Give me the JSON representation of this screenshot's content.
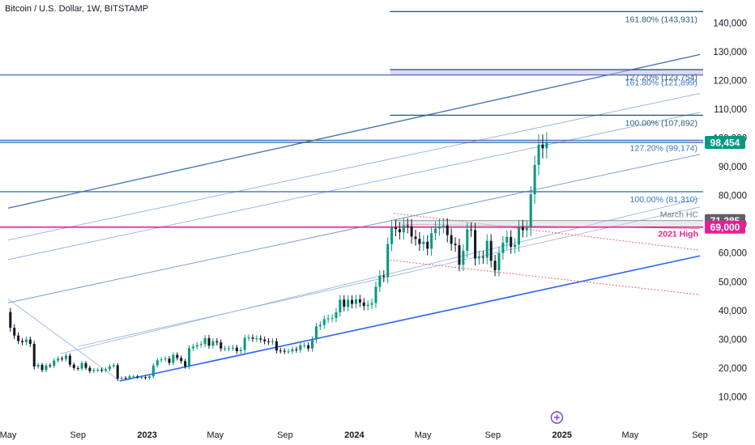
{
  "header": {
    "title": "Bitcoin / U.S. Dollar, 1W, BITSTAMP"
  },
  "colors": {
    "up": "#26a69a",
    "up_fill": "#089981",
    "down": "#131722",
    "trend_dark": "#2962ff",
    "trend": "#3d6fb8",
    "trend_light": "#8fb0de",
    "fib_dark": "#2b5c7c",
    "fib_blue": "#3b74c0",
    "magenta": "#e91e96",
    "gray": "#9598a1",
    "price_tag": "#089981",
    "red_dotted": "#e05a5a",
    "purple": "#6b4aa0"
  },
  "chart_data": {
    "type": "candlestick",
    "symbol": "Bitcoin / U.S. Dollar",
    "interval": "1W",
    "exchange": "BITSTAMP",
    "y_ticks": [
      10000,
      20000,
      30000,
      40000,
      50000,
      60000,
      70000,
      80000,
      90000,
      100000,
      110000,
      120000,
      130000,
      140000
    ],
    "y_tick_labels": [
      "10,000",
      "20,000",
      "30,000",
      "40,000",
      "50,000",
      "60,000",
      "70,000",
      "80,000",
      "90,000",
      "100,000",
      "110,000",
      "120,000",
      "130,000",
      "140,000"
    ],
    "x_labels": [
      {
        "label": "May",
        "date": "2022-05-01",
        "bold": false
      },
      {
        "label": "Sep",
        "date": "2022-09-01",
        "bold": false
      },
      {
        "label": "2023",
        "date": "2023-01-01",
        "bold": true
      },
      {
        "label": "May",
        "date": "2023-05-01",
        "bold": false
      },
      {
        "label": "Sep",
        "date": "2023-09-01",
        "bold": false
      },
      {
        "label": "2024",
        "date": "2024-01-01",
        "bold": true
      },
      {
        "label": "May",
        "date": "2024-05-01",
        "bold": false
      },
      {
        "label": "Sep",
        "date": "2024-09-01",
        "bold": false
      },
      {
        "label": "2025",
        "date": "2025-01-01",
        "bold": true
      },
      {
        "label": "May",
        "date": "2025-05-01",
        "bold": false
      },
      {
        "label": "Sep",
        "date": "2025-09-01",
        "bold": false
      }
    ],
    "x_range": [
      "2022-05-01",
      "2025-09-01"
    ],
    "y_range": [
      0,
      148000
    ],
    "candles_weekly_close": [
      {
        "date": "2022-04-25",
        "close": 39500
      },
      {
        "date": "2022-05-02",
        "close": 34000
      },
      {
        "date": "2022-05-09",
        "close": 31300
      },
      {
        "date": "2022-05-16",
        "close": 29400
      },
      {
        "date": "2022-05-23",
        "close": 29000
      },
      {
        "date": "2022-05-30",
        "close": 29900
      },
      {
        "date": "2022-06-06",
        "close": 28400
      },
      {
        "date": "2022-06-13",
        "close": 20500
      },
      {
        "date": "2022-06-20",
        "close": 21100
      },
      {
        "date": "2022-06-27",
        "close": 19300
      },
      {
        "date": "2022-07-04",
        "close": 20900
      },
      {
        "date": "2022-07-11",
        "close": 20800
      },
      {
        "date": "2022-07-18",
        "close": 22600
      },
      {
        "date": "2022-07-25",
        "close": 23300
      },
      {
        "date": "2022-08-01",
        "close": 23200
      },
      {
        "date": "2022-08-08",
        "close": 24300
      },
      {
        "date": "2022-08-15",
        "close": 21200
      },
      {
        "date": "2022-08-22",
        "close": 20000
      },
      {
        "date": "2022-08-29",
        "close": 19800
      },
      {
        "date": "2022-09-05",
        "close": 21700
      },
      {
        "date": "2022-09-12",
        "close": 20100
      },
      {
        "date": "2022-09-19",
        "close": 18900
      },
      {
        "date": "2022-09-26",
        "close": 19300
      },
      {
        "date": "2022-10-03",
        "close": 19400
      },
      {
        "date": "2022-10-10",
        "close": 19200
      },
      {
        "date": "2022-10-17",
        "close": 19600
      },
      {
        "date": "2022-10-24",
        "close": 20600
      },
      {
        "date": "2022-10-31",
        "close": 21000
      },
      {
        "date": "2022-11-07",
        "close": 16300
      },
      {
        "date": "2022-11-14",
        "close": 16600
      },
      {
        "date": "2022-11-21",
        "close": 16500
      },
      {
        "date": "2022-11-28",
        "close": 17100
      },
      {
        "date": "2022-12-05",
        "close": 17100
      },
      {
        "date": "2022-12-12",
        "close": 16800
      },
      {
        "date": "2022-12-19",
        "close": 16800
      },
      {
        "date": "2022-12-26",
        "close": 16600
      },
      {
        "date": "2023-01-02",
        "close": 17100
      },
      {
        "date": "2023-01-09",
        "close": 20900
      },
      {
        "date": "2023-01-16",
        "close": 22700
      },
      {
        "date": "2023-01-23",
        "close": 23000
      },
      {
        "date": "2023-01-30",
        "close": 23300
      },
      {
        "date": "2023-02-06",
        "close": 21800
      },
      {
        "date": "2023-02-13",
        "close": 24600
      },
      {
        "date": "2023-02-20",
        "close": 23500
      },
      {
        "date": "2023-02-27",
        "close": 22400
      },
      {
        "date": "2023-03-06",
        "close": 20600
      },
      {
        "date": "2023-03-13",
        "close": 26900
      },
      {
        "date": "2023-03-20",
        "close": 27500
      },
      {
        "date": "2023-03-27",
        "close": 28000
      },
      {
        "date": "2023-04-03",
        "close": 28300
      },
      {
        "date": "2023-04-10",
        "close": 30400
      },
      {
        "date": "2023-04-17",
        "close": 27800
      },
      {
        "date": "2023-04-24",
        "close": 29300
      },
      {
        "date": "2023-05-01",
        "close": 28900
      },
      {
        "date": "2023-05-08",
        "close": 26800
      },
      {
        "date": "2023-05-15",
        "close": 26800
      },
      {
        "date": "2023-05-22",
        "close": 26900
      },
      {
        "date": "2023-05-29",
        "close": 27100
      },
      {
        "date": "2023-06-05",
        "close": 25900
      },
      {
        "date": "2023-06-12",
        "close": 26300
      },
      {
        "date": "2023-06-19",
        "close": 30500
      },
      {
        "date": "2023-06-26",
        "close": 30600
      },
      {
        "date": "2023-07-03",
        "close": 30200
      },
      {
        "date": "2023-07-10",
        "close": 30300
      },
      {
        "date": "2023-07-17",
        "close": 29900
      },
      {
        "date": "2023-07-24",
        "close": 29300
      },
      {
        "date": "2023-07-31",
        "close": 29100
      },
      {
        "date": "2023-08-07",
        "close": 29300
      },
      {
        "date": "2023-08-14",
        "close": 26100
      },
      {
        "date": "2023-08-21",
        "close": 26000
      },
      {
        "date": "2023-08-28",
        "close": 25800
      },
      {
        "date": "2023-09-04",
        "close": 25800
      },
      {
        "date": "2023-09-11",
        "close": 26500
      },
      {
        "date": "2023-09-18",
        "close": 26300
      },
      {
        "date": "2023-09-25",
        "close": 27900
      },
      {
        "date": "2023-10-02",
        "close": 27900
      },
      {
        "date": "2023-10-09",
        "close": 26800
      },
      {
        "date": "2023-10-16",
        "close": 29900
      },
      {
        "date": "2023-10-23",
        "close": 34500
      },
      {
        "date": "2023-10-30",
        "close": 35000
      },
      {
        "date": "2023-11-06",
        "close": 37000
      },
      {
        "date": "2023-11-13",
        "close": 37300
      },
      {
        "date": "2023-11-20",
        "close": 37400
      },
      {
        "date": "2023-11-27",
        "close": 39400
      },
      {
        "date": "2023-12-04",
        "close": 43800
      },
      {
        "date": "2023-12-11",
        "close": 41300
      },
      {
        "date": "2023-12-18",
        "close": 43700
      },
      {
        "date": "2023-12-25",
        "close": 42300
      },
      {
        "date": "2024-01-01",
        "close": 43900
      },
      {
        "date": "2024-01-08",
        "close": 42800
      },
      {
        "date": "2024-01-15",
        "close": 41600
      },
      {
        "date": "2024-01-22",
        "close": 42000
      },
      {
        "date": "2024-01-29",
        "close": 42600
      },
      {
        "date": "2024-02-05",
        "close": 48300
      },
      {
        "date": "2024-02-12",
        "close": 52100
      },
      {
        "date": "2024-02-19",
        "close": 51700
      },
      {
        "date": "2024-02-26",
        "close": 63100
      },
      {
        "date": "2024-03-04",
        "close": 68900
      },
      {
        "date": "2024-03-11",
        "close": 68300
      },
      {
        "date": "2024-03-18",
        "close": 67200
      },
      {
        "date": "2024-03-25",
        "close": 69600
      },
      {
        "date": "2024-04-01",
        "close": 69300
      },
      {
        "date": "2024-04-08",
        "close": 65700
      },
      {
        "date": "2024-04-15",
        "close": 64900
      },
      {
        "date": "2024-04-22",
        "close": 63100
      },
      {
        "date": "2024-04-29",
        "close": 63900
      },
      {
        "date": "2024-05-06",
        "close": 61500
      },
      {
        "date": "2024-05-13",
        "close": 66900
      },
      {
        "date": "2024-05-20",
        "close": 68500
      },
      {
        "date": "2024-05-27",
        "close": 69300
      },
      {
        "date": "2024-06-03",
        "close": 69600
      },
      {
        "date": "2024-06-10",
        "close": 66200
      },
      {
        "date": "2024-06-17",
        "close": 63200
      },
      {
        "date": "2024-06-24",
        "close": 62700
      },
      {
        "date": "2024-07-01",
        "close": 55900
      },
      {
        "date": "2024-07-08",
        "close": 60800
      },
      {
        "date": "2024-07-15",
        "close": 68200
      },
      {
        "date": "2024-07-22",
        "close": 68000
      },
      {
        "date": "2024-07-29",
        "close": 58100
      },
      {
        "date": "2024-08-05",
        "close": 58700
      },
      {
        "date": "2024-08-12",
        "close": 58400
      },
      {
        "date": "2024-08-19",
        "close": 64200
      },
      {
        "date": "2024-08-26",
        "close": 57300
      },
      {
        "date": "2024-09-02",
        "close": 54000
      },
      {
        "date": "2024-09-09",
        "close": 60000
      },
      {
        "date": "2024-09-16",
        "close": 63600
      },
      {
        "date": "2024-09-23",
        "close": 65600
      },
      {
        "date": "2024-09-30",
        "close": 62100
      },
      {
        "date": "2024-10-07",
        "close": 62900
      },
      {
        "date": "2024-10-14",
        "close": 69000
      },
      {
        "date": "2024-10-21",
        "close": 67900
      },
      {
        "date": "2024-10-28",
        "close": 68700
      },
      {
        "date": "2024-11-04",
        "close": 80400
      },
      {
        "date": "2024-11-11",
        "close": 90600
      },
      {
        "date": "2024-11-18",
        "close": 97700
      },
      {
        "date": "2024-11-25",
        "close": 96400
      },
      {
        "date": "2024-12-02",
        "close": 98454
      }
    ],
    "current_price": {
      "value": 98454,
      "label": "98,454"
    },
    "levels": [
      {
        "name": "161.80% (143,931)",
        "price": 143931,
        "color": "#2b5c7c",
        "from": "2024-03-04",
        "extend": "right"
      },
      {
        "name": "127.20% (123,754)",
        "price": 123754,
        "color": "#2b5c7c",
        "from": "2024-03-04",
        "extend": "right"
      },
      {
        "name": "161.80% (121,899)",
        "price": 121899,
        "color": "#3b74c0",
        "from": "2022-05-01",
        "extend": "right"
      },
      {
        "name": "100.00% (107,892)",
        "price": 107892,
        "color": "#2b5c7c",
        "from": "2024-03-04",
        "extend": "right"
      },
      {
        "name": "127.20% (99,174)",
        "price": 99174,
        "color": "#3b74c0",
        "from": "2022-05-01",
        "extend": "right"
      },
      {
        "name": "100.00% (81,310)",
        "price": 81310,
        "color": "#3b74c0",
        "from": "2022-05-01",
        "extend": "right"
      }
    ],
    "march_hc": {
      "label": "March HC",
      "price": 71285,
      "tag": "71,285",
      "from": "2024-03-11"
    },
    "high_2021": {
      "label": "2021 High",
      "price": 69000,
      "tag": "69,000",
      "from": "2022-05-01"
    },
    "trendlines": [
      {
        "style": "solid",
        "width": 1.6,
        "color": "#2962ff",
        "points": [
          [
            "2022-11-14",
            15500
          ],
          [
            "2025-09-01",
            59000
          ]
        ]
      },
      {
        "style": "solid",
        "width": 1.3,
        "color": "#3d6fb8",
        "points": [
          [
            "2022-05-01",
            75600
          ],
          [
            "2025-09-01",
            129000
          ]
        ]
      },
      {
        "style": "solid",
        "width": 0.9,
        "color": "#8fb0de",
        "points": [
          [
            "2022-05-01",
            64500
          ],
          [
            "2025-09-01",
            115500
          ]
        ]
      },
      {
        "style": "solid",
        "width": 0.9,
        "color": "#8fb0de",
        "points": [
          [
            "2022-05-01",
            57700
          ],
          [
            "2025-09-01",
            108900
          ]
        ]
      },
      {
        "style": "solid",
        "width": 0.9,
        "color": "#6d93cc",
        "points": [
          [
            "2022-05-01",
            42700
          ],
          [
            "2025-09-01",
            94300
          ]
        ]
      },
      {
        "style": "solid",
        "width": 0.8,
        "color": "#8fb0de",
        "points": [
          [
            "2022-08-01",
            25000
          ],
          [
            "2025-09-01",
            79000
          ]
        ]
      },
      {
        "style": "solid",
        "width": 0.8,
        "color": "#8fb0de",
        "points": [
          [
            "2022-09-01",
            27500
          ],
          [
            "2025-09-01",
            76000
          ]
        ]
      },
      {
        "style": "solid",
        "width": 0.8,
        "color": "#8fb0de",
        "points": [
          [
            "2022-05-01",
            44000
          ],
          [
            "2022-11-14",
            15500
          ]
        ]
      },
      {
        "style": "dotted",
        "width": 0.9,
        "color": "#e05a5a",
        "points": [
          [
            "2024-03-11",
            73800
          ],
          [
            "2025-09-01",
            61000
          ]
        ]
      },
      {
        "style": "dotted",
        "width": 0.9,
        "color": "#e05a5a",
        "points": [
          [
            "2024-03-04",
            57500
          ],
          [
            "2025-09-01",
            45500
          ]
        ]
      },
      {
        "style": "solid",
        "width": 0.7,
        "color": "#cc7a7a",
        "points": [
          [
            "2024-03-25",
            70000
          ],
          [
            "2025-09-01",
            68500
          ]
        ]
      }
    ]
  }
}
